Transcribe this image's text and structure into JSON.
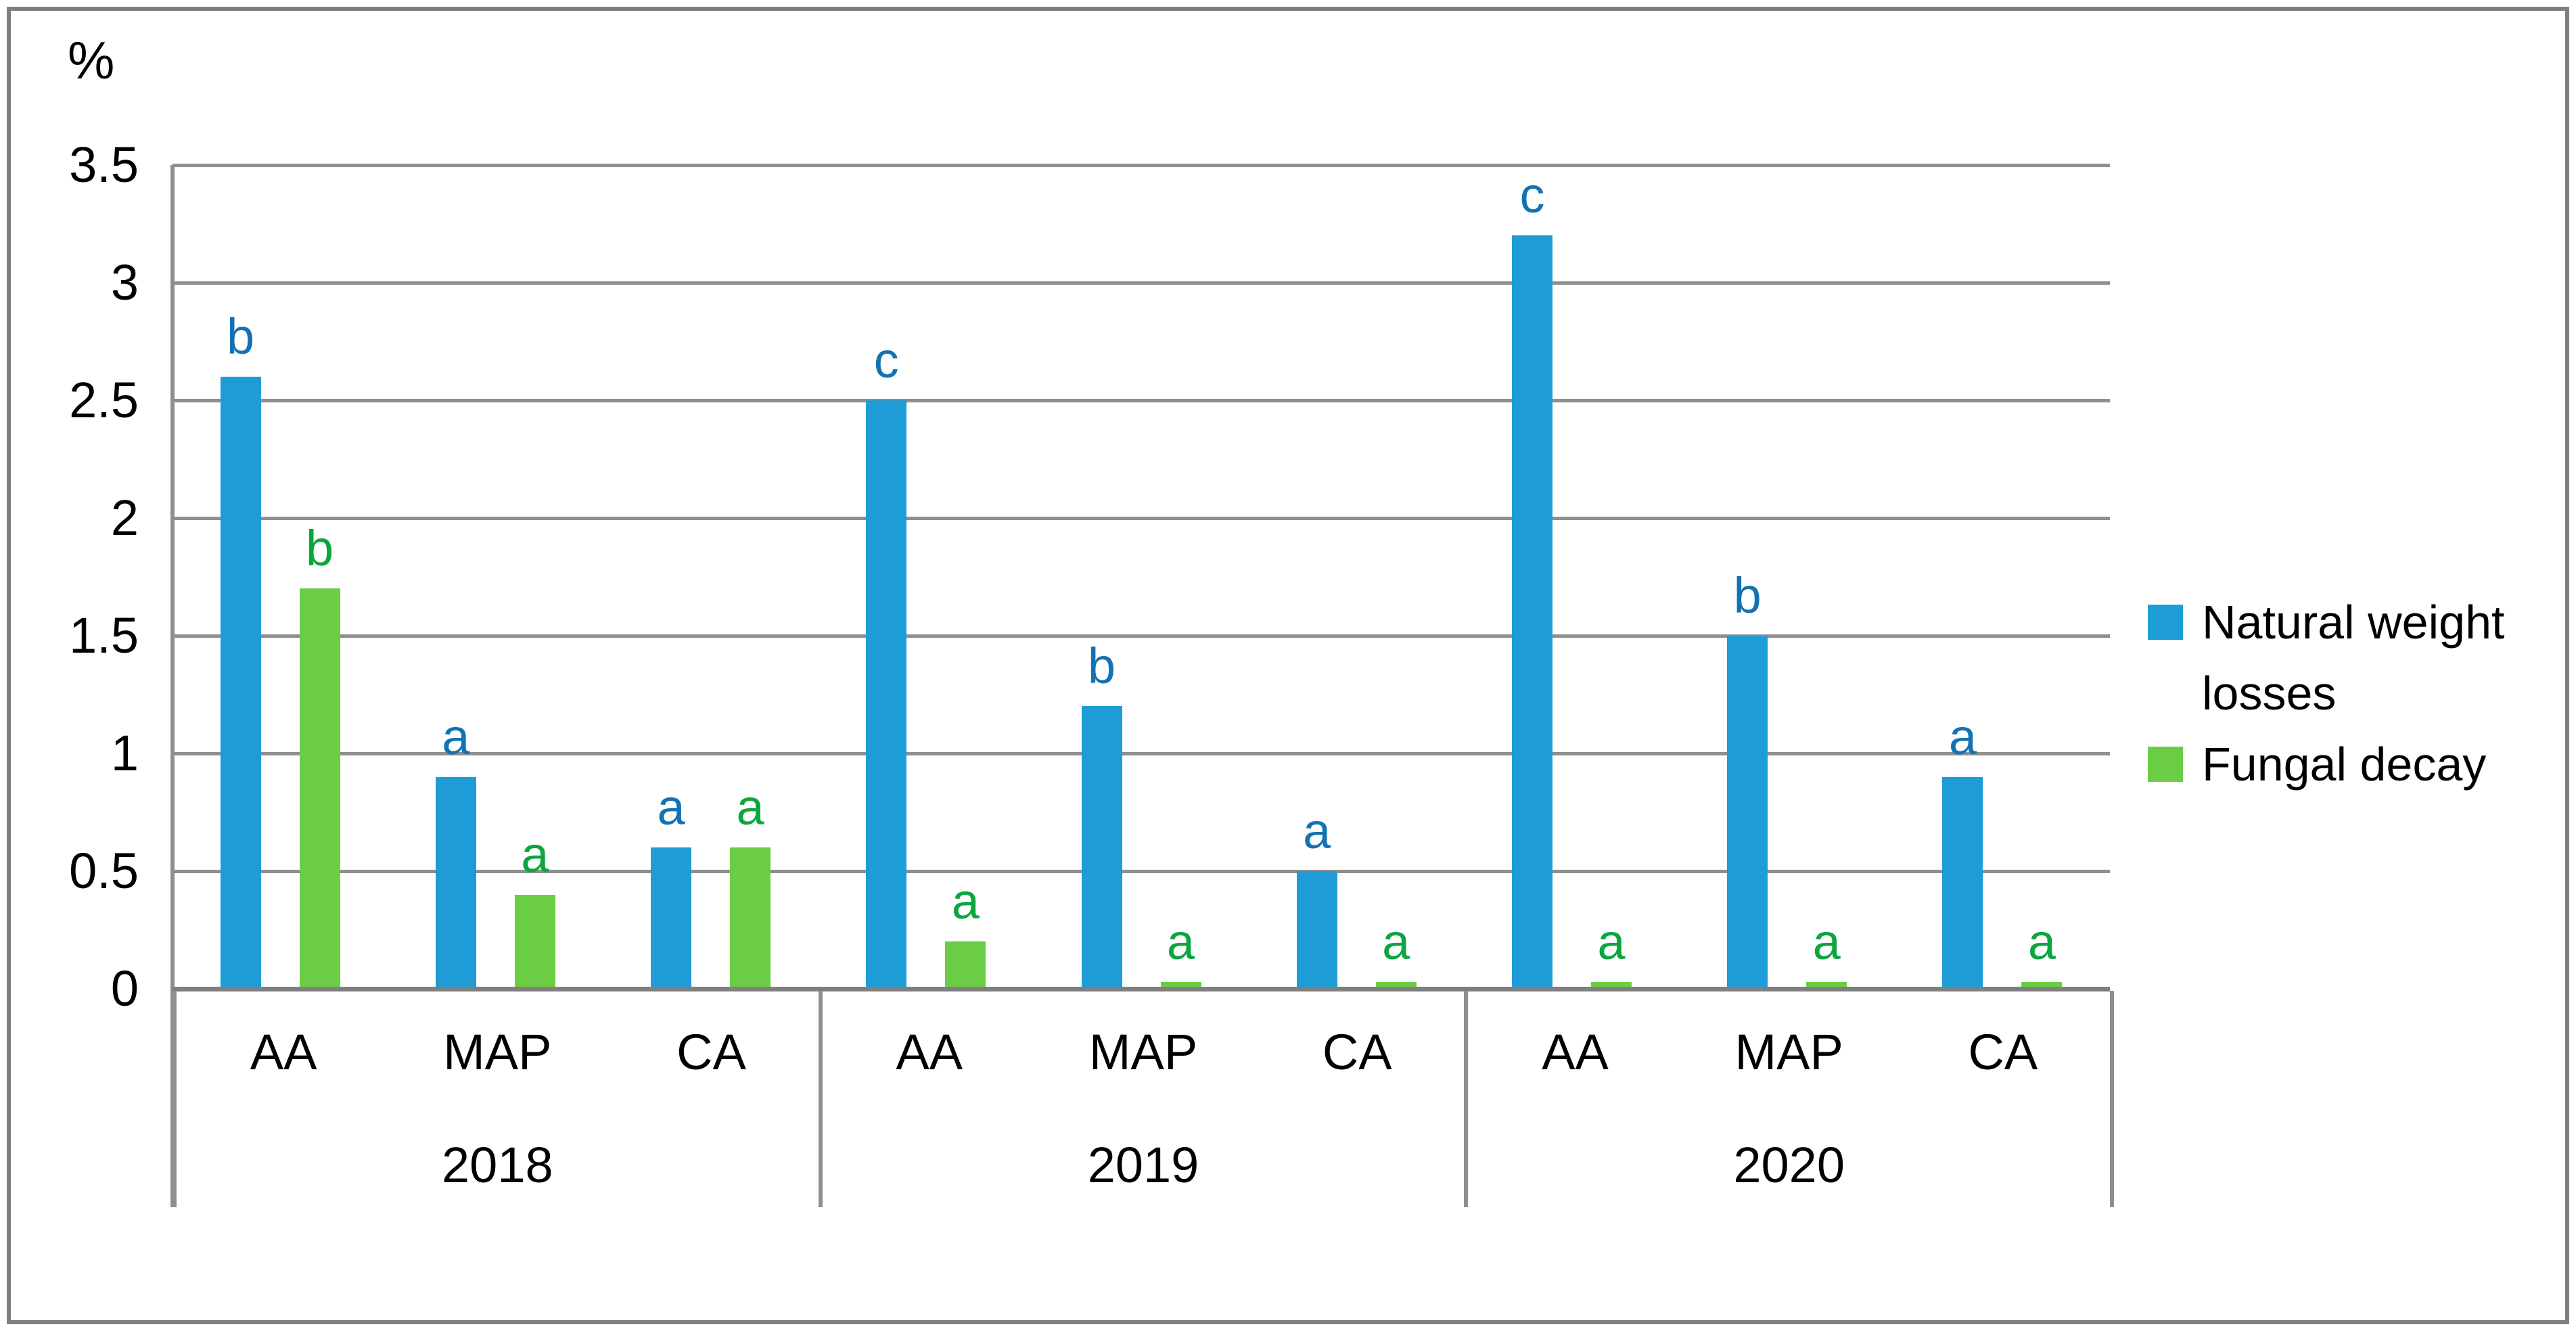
{
  "figure": {
    "y_axis_unit": "%",
    "y_ticks": [
      "3.5",
      "3",
      "2.5",
      "2",
      "1.5",
      "1",
      "0.5",
      "0"
    ]
  },
  "legend": {
    "items": [
      {
        "label": "Natural weight losses",
        "color": "#1E9CD8"
      },
      {
        "label": "Fungal decay",
        "color": "#6BCD43"
      }
    ]
  },
  "chart_data": {
    "type": "bar",
    "title": "",
    "xlabel": "",
    "ylabel": "%",
    "ylim": [
      0,
      3.5
    ],
    "ytick_interval": 0.5,
    "grid": true,
    "legend_position": "right",
    "series": [
      {
        "name": "Natural weight losses",
        "color": "#1E9CD8",
        "letter_color": "#1272B4"
      },
      {
        "name": "Fungal decay",
        "color": "#6BCD43",
        "letter_color": "#0CA53E"
      }
    ],
    "group_labels": [
      "2018",
      "2019",
      "2020"
    ],
    "categories": [
      "AA",
      "MAP",
      "CA"
    ],
    "groups": [
      {
        "label": "2018",
        "categories": [
          {
            "label": "AA",
            "bars": [
              {
                "series": "Natural weight losses",
                "value": 2.6,
                "letter": "b"
              },
              {
                "series": "Fungal decay",
                "value": 1.7,
                "letter": "b"
              }
            ]
          },
          {
            "label": "MAP",
            "bars": [
              {
                "series": "Natural weight losses",
                "value": 0.9,
                "letter": "a"
              },
              {
                "series": "Fungal decay",
                "value": 0.4,
                "letter": "a"
              }
            ]
          },
          {
            "label": "CA",
            "bars": [
              {
                "series": "Natural weight losses",
                "value": 0.6,
                "letter": "a"
              },
              {
                "series": "Fungal decay",
                "value": 0.6,
                "letter": "a"
              }
            ]
          }
        ]
      },
      {
        "label": "2019",
        "categories": [
          {
            "label": "AA",
            "bars": [
              {
                "series": "Natural weight losses",
                "value": 2.5,
                "letter": "c"
              },
              {
                "series": "Fungal decay",
                "value": 0.2,
                "letter": "a"
              }
            ]
          },
          {
            "label": "MAP",
            "bars": [
              {
                "series": "Natural weight losses",
                "value": 1.2,
                "letter": "b"
              },
              {
                "series": "Fungal decay",
                "value": 0.03,
                "letter": "a"
              }
            ]
          },
          {
            "label": "CA",
            "bars": [
              {
                "series": "Natural weight losses",
                "value": 0.5,
                "letter": "a"
              },
              {
                "series": "Fungal decay",
                "value": 0.03,
                "letter": "a"
              }
            ]
          }
        ]
      },
      {
        "label": "2020",
        "categories": [
          {
            "label": "AA",
            "bars": [
              {
                "series": "Natural weight losses",
                "value": 3.2,
                "letter": "c"
              },
              {
                "series": "Fungal decay",
                "value": 0.03,
                "letter": "a"
              }
            ]
          },
          {
            "label": "MAP",
            "bars": [
              {
                "series": "Natural weight losses",
                "value": 1.5,
                "letter": "b"
              },
              {
                "series": "Fungal decay",
                "value": 0.03,
                "letter": "a"
              }
            ]
          },
          {
            "label": "CA",
            "bars": [
              {
                "series": "Natural weight losses",
                "value": 0.9,
                "letter": "a"
              },
              {
                "series": "Fungal decay",
                "value": 0.03,
                "letter": "a"
              }
            ]
          }
        ]
      }
    ],
    "colors": {
      "gridline": "#8F8F8F",
      "axis_line": "#7F7F7F",
      "frame_border": "#7F7F7F",
      "text": "#000000"
    }
  }
}
